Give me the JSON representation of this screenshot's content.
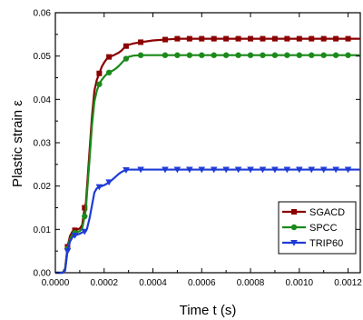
{
  "chart_data": {
    "type": "line",
    "title": "",
    "xlabel": "Time t  (s)",
    "ylabel": "Plastic strain  ε",
    "xlim": [
      0,
      0.00125
    ],
    "ylim": [
      0,
      0.06
    ],
    "xticks": [
      0,
      0.0002,
      0.0004,
      0.0006,
      0.0008,
      0.001,
      0.0012
    ],
    "xtick_labels": [
      "0.0000",
      "0.0002",
      "0.0004",
      "0.0006",
      "0.0008",
      "0.0010",
      "0.0012"
    ],
    "yticks": [
      0,
      0.01,
      0.02,
      0.03,
      0.04,
      0.05,
      0.06
    ],
    "ytick_labels": [
      "0.00",
      "0.01",
      "0.02",
      "0.03",
      "0.04",
      "0.05",
      "0.06"
    ],
    "grid": false,
    "legend_position": "bottom-right",
    "series": [
      {
        "name": "SGACD",
        "color": "#8b0000",
        "marker": "square",
        "x": [
          0,
          1e-05,
          2e-05,
          3e-05,
          4e-05,
          5e-05,
          6e-05,
          7e-05,
          8e-05,
          9e-05,
          0.0001,
          0.00011,
          0.00012,
          0.000125,
          0.00013,
          0.00014,
          0.00015,
          0.00016,
          0.00017,
          0.00018,
          0.00019,
          0.0002,
          0.00021,
          0.00022,
          0.00023,
          0.00024,
          0.00025,
          0.00026,
          0.00027,
          0.00028,
          0.00029,
          0.0003,
          0.00032,
          0.00035,
          0.0004,
          0.00045,
          0.0005,
          0.00055,
          0.0006,
          0.00065,
          0.0007,
          0.00075,
          0.0008,
          0.00085,
          0.0009,
          0.00095,
          0.001,
          0.00105,
          0.0011,
          0.00115,
          0.0012,
          0.00125
        ],
        "y": [
          0,
          0,
          0,
          0,
          0.001,
          0.006,
          0.0085,
          0.0095,
          0.0098,
          0.01,
          0.0102,
          0.011,
          0.015,
          0.016,
          0.02,
          0.028,
          0.036,
          0.042,
          0.0445,
          0.046,
          0.0475,
          0.0485,
          0.0493,
          0.0498,
          0.05,
          0.0502,
          0.0505,
          0.0508,
          0.0512,
          0.0518,
          0.0523,
          0.0526,
          0.0529,
          0.0532,
          0.0536,
          0.0538,
          0.054,
          0.054,
          0.054,
          0.054,
          0.054,
          0.054,
          0.054,
          0.054,
          0.054,
          0.054,
          0.054,
          0.054,
          0.054,
          0.054,
          0.054,
          0.054
        ],
        "marker_indices": [
          5,
          8,
          12,
          19,
          23,
          30,
          33,
          35,
          36,
          37,
          38,
          39,
          40,
          41,
          42,
          43,
          44,
          45,
          46,
          47,
          48,
          49,
          50
        ]
      },
      {
        "name": "SPCC",
        "color": "#1a8a1a",
        "marker": "circle",
        "x": [
          0,
          1e-05,
          2e-05,
          3e-05,
          4e-05,
          5e-05,
          6e-05,
          7e-05,
          8e-05,
          9e-05,
          0.0001,
          0.00011,
          0.00012,
          0.000125,
          0.00013,
          0.00014,
          0.00015,
          0.00016,
          0.00017,
          0.00018,
          0.00019,
          0.0002,
          0.00021,
          0.00022,
          0.00023,
          0.00024,
          0.00025,
          0.00026,
          0.00027,
          0.00028,
          0.00029,
          0.0003,
          0.00032,
          0.00035,
          0.0004,
          0.00045,
          0.0005,
          0.00055,
          0.0006,
          0.00065,
          0.0007,
          0.00075,
          0.0008,
          0.00085,
          0.0009,
          0.00095,
          0.001,
          0.00105,
          0.0011,
          0.00115,
          0.0012,
          0.00125
        ],
        "y": [
          0,
          0,
          0,
          0,
          0.0008,
          0.0055,
          0.0078,
          0.0088,
          0.0092,
          0.0094,
          0.0096,
          0.0102,
          0.013,
          0.0145,
          0.0185,
          0.026,
          0.034,
          0.0395,
          0.042,
          0.0435,
          0.0445,
          0.0452,
          0.0458,
          0.0462,
          0.0465,
          0.0468,
          0.0472,
          0.0477,
          0.0483,
          0.0489,
          0.0494,
          0.0498,
          0.0501,
          0.0502,
          0.0502,
          0.0502,
          0.0502,
          0.0502,
          0.0502,
          0.0502,
          0.0502,
          0.0502,
          0.0502,
          0.0502,
          0.0502,
          0.0502,
          0.0502,
          0.0502,
          0.0502,
          0.0502,
          0.0502,
          0.0502
        ],
        "marker_indices": [
          5,
          8,
          12,
          19,
          23,
          30,
          33,
          35,
          36,
          37,
          38,
          39,
          40,
          41,
          42,
          43,
          44,
          45,
          46,
          47,
          48,
          49,
          50
        ]
      },
      {
        "name": "TRIP60",
        "color": "#1f3bd6",
        "marker": "triangle-down",
        "x": [
          0,
          1e-05,
          2e-05,
          3e-05,
          4e-05,
          5e-05,
          6e-05,
          7e-05,
          8e-05,
          9e-05,
          0.0001,
          0.00011,
          0.00012,
          0.000125,
          0.00013,
          0.00014,
          0.00015,
          0.00016,
          0.00017,
          0.00018,
          0.00019,
          0.0002,
          0.00021,
          0.00022,
          0.00023,
          0.00024,
          0.00025,
          0.00026,
          0.00027,
          0.00028,
          0.00029,
          0.0003,
          0.00032,
          0.00035,
          0.0004,
          0.00045,
          0.0005,
          0.00055,
          0.0006,
          0.00065,
          0.0007,
          0.00075,
          0.0008,
          0.00085,
          0.0009,
          0.00095,
          0.001,
          0.00105,
          0.0011,
          0.00115,
          0.0012,
          0.00125
        ],
        "y": [
          0,
          0,
          0,
          0,
          0.0005,
          0.005,
          0.0072,
          0.0082,
          0.0086,
          0.0088,
          0.009,
          0.0093,
          0.0095,
          0.0096,
          0.0102,
          0.0125,
          0.0155,
          0.0185,
          0.0195,
          0.0198,
          0.02,
          0.0202,
          0.0205,
          0.0209,
          0.0213,
          0.0218,
          0.0223,
          0.0228,
          0.0232,
          0.0235,
          0.0237,
          0.0238,
          0.0238,
          0.0238,
          0.0238,
          0.0238,
          0.0238,
          0.0238,
          0.0238,
          0.0238,
          0.0238,
          0.0238,
          0.0238,
          0.0238,
          0.0238,
          0.0238,
          0.0238,
          0.0238,
          0.0238,
          0.0238,
          0.0238,
          0.0238
        ],
        "marker_indices": [
          5,
          8,
          12,
          19,
          23,
          30,
          33,
          35,
          36,
          37,
          38,
          39,
          40,
          41,
          42,
          43,
          44,
          45,
          46,
          47,
          48,
          49,
          50
        ]
      }
    ]
  }
}
